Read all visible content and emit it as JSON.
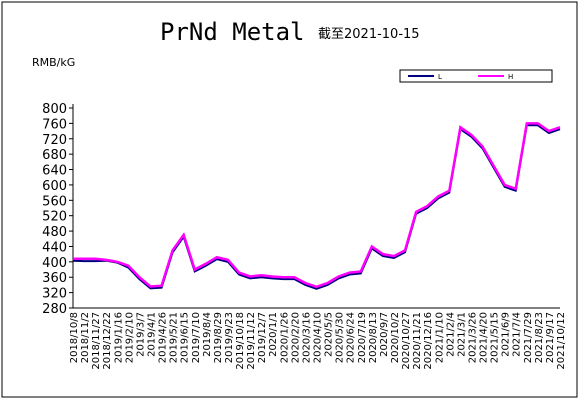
{
  "chart_data": {
    "type": "line",
    "title": "PrNd Metal",
    "subtitle": "截至2021-10-15",
    "y_label": "RMB/kG",
    "categories": [
      "2018/10/8",
      "2018/11/2",
      "2018/11/27",
      "2018/12/22",
      "2019/1/16",
      "2019/2/10",
      "2019/3/7",
      "2019/4/1",
      "2019/4/26",
      "2019/5/21",
      "2019/6/15",
      "2019/7/10",
      "2019/8/4",
      "2019/8/29",
      "2019/9/23",
      "2019/10/18",
      "2019/11/12",
      "2019/12/7",
      "2020/1/1",
      "2020/1/26",
      "2020/2/20",
      "2020/3/16",
      "2020/4/10",
      "2020/5/5",
      "2020/5/30",
      "2020/6/24",
      "2020/7/19",
      "2020/8/13",
      "2020/9/7",
      "2020/10/2",
      "2020/10/27",
      "2020/11/21",
      "2020/12/16",
      "2021/1/10",
      "2021/2/4",
      "2021/3/1",
      "2021/3/26",
      "2021/4/20",
      "2021/5/15",
      "2021/6/9",
      "2021/7/4",
      "2021/7/29",
      "2021/8/23",
      "2021/9/17",
      "2021/10/12"
    ],
    "series": [
      {
        "name": "L",
        "color": "#000080",
        "values": [
          403,
          402,
          402,
          403,
          398,
          385,
          355,
          331,
          333,
          425,
          465,
          375,
          390,
          407,
          400,
          367,
          357,
          360,
          357,
          355,
          355,
          340,
          330,
          340,
          357,
          367,
          370,
          435,
          415,
          410,
          425,
          525,
          540,
          565,
          580,
          745,
          725,
          695,
          645,
          595,
          585,
          755,
          755,
          735,
          745
        ]
      },
      {
        "name": "H",
        "color": "#ff00ff",
        "values": [
          408,
          408,
          408,
          405,
          400,
          390,
          360,
          336,
          338,
          430,
          470,
          380,
          395,
          412,
          405,
          372,
          362,
          365,
          362,
          360,
          360,
          345,
          335,
          345,
          362,
          372,
          375,
          440,
          420,
          415,
          430,
          530,
          545,
          570,
          585,
          750,
          730,
          700,
          650,
          600,
          590,
          760,
          760,
          740,
          750
        ]
      }
    ],
    "ylim": [
      280,
      800
    ],
    "yticks": [
      280,
      320,
      360,
      400,
      440,
      480,
      520,
      560,
      600,
      640,
      680,
      720,
      760,
      800
    ],
    "legend": "upper-right"
  }
}
